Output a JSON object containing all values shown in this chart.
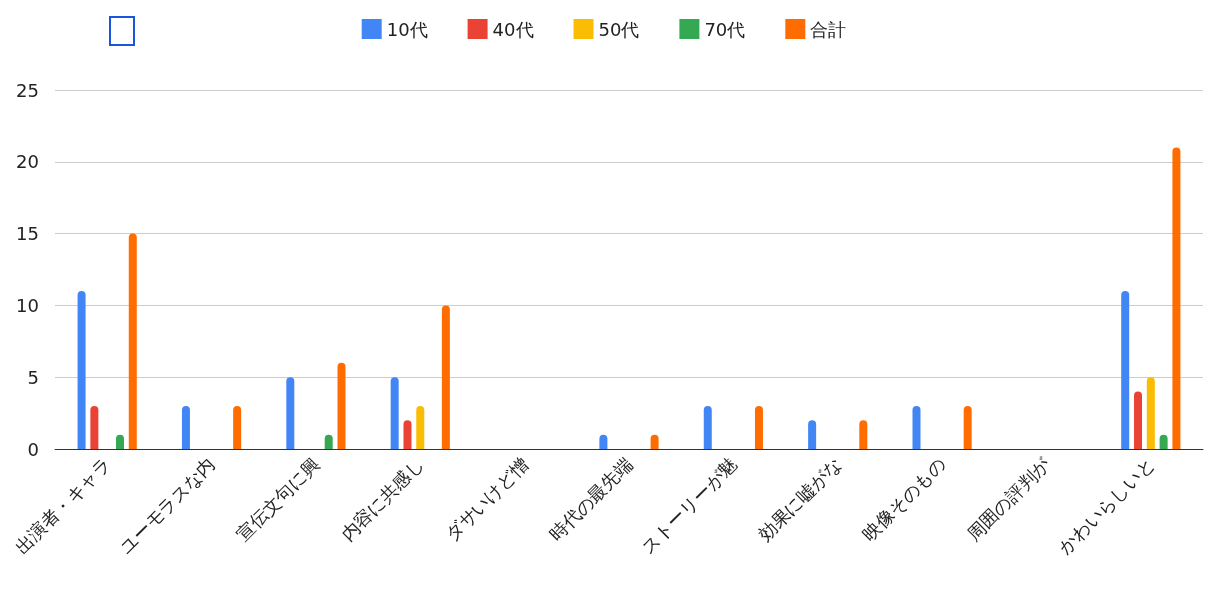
{
  "chart_data": {
    "type": "bar",
    "categories": [
      "出演者・キャラ",
      "ユーモラスな内",
      "宣伝文句に興",
      "内容に共感し",
      "ダサいけど憎",
      "時代の最先端",
      "ストーリーが魅",
      "効果に嘘がな",
      "映像そのもの",
      "周囲の評判が",
      "かわいらしいと"
    ],
    "series": [
      {
        "name": "10代",
        "color": "#4285f4",
        "values": [
          11,
          3,
          5,
          5,
          0,
          1,
          3,
          2,
          3,
          0,
          11
        ]
      },
      {
        "name": "40代",
        "color": "#ea4335",
        "values": [
          3,
          0,
          0,
          2,
          0,
          0,
          0,
          0,
          0,
          0,
          4
        ]
      },
      {
        "name": "50代",
        "color": "#fbbc04",
        "values": [
          0,
          0,
          0,
          3,
          0,
          0,
          0,
          0,
          0,
          0,
          5
        ]
      },
      {
        "name": "70代",
        "color": "#34a853",
        "values": [
          1,
          0,
          1,
          0,
          0,
          0,
          0,
          0,
          0,
          0,
          1
        ]
      },
      {
        "name": "合計",
        "color": "#ff6d01",
        "values": [
          15,
          3,
          6,
          10,
          0,
          1,
          3,
          2,
          3,
          0,
          21
        ]
      }
    ],
    "ylim": [
      0,
      25
    ],
    "yticks": [
      0,
      5,
      10,
      15,
      20,
      25
    ],
    "grid": "y",
    "legend": "top"
  }
}
